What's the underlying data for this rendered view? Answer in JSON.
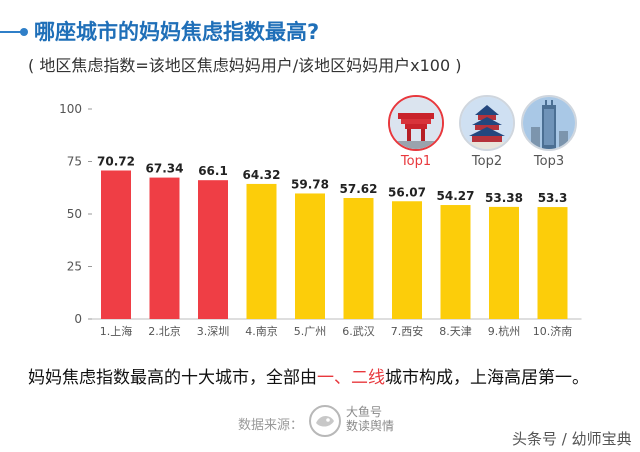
{
  "header": {
    "title": "哪座城市的妈妈焦虑指数最高?",
    "subtitle": "( 地区焦虑指数=该地区焦虑妈妈用户/该地区妈妈用户x100 )"
  },
  "chart_data": {
    "type": "bar",
    "categories": [
      "1.上海",
      "2.北京",
      "3.深圳",
      "4.南京",
      "5.广州",
      "6.武汉",
      "7.西安",
      "8.天津",
      "9.杭州",
      "10.济南"
    ],
    "values": [
      70.72,
      67.34,
      66.1,
      64.32,
      59.78,
      57.62,
      56.07,
      54.27,
      53.38,
      53.3
    ],
    "value_labels": [
      "70.72",
      "67.34",
      "66.1",
      "64.32",
      "59.78",
      "57.62",
      "56.07",
      "54.27",
      "53.38",
      "53.3"
    ],
    "ylim": [
      0,
      100
    ],
    "yticks": [
      0,
      25,
      50,
      75,
      100
    ],
    "grid": false,
    "colors": [
      "#ef3e45",
      "#ef3e45",
      "#ef3e45",
      "#fccd0a",
      "#fccd0a",
      "#fccd0a",
      "#fccd0a",
      "#fccd0a",
      "#fccd0a",
      "#fccd0a"
    ]
  },
  "badges": [
    {
      "label": "Top1",
      "icon": "china-pavilion-icon"
    },
    {
      "label": "Top2",
      "icon": "temple-of-heaven-icon"
    },
    {
      "label": "Top3",
      "icon": "skyscraper-icon"
    }
  ],
  "caption": {
    "part1": "妈妈焦虑指数最高的十大城市，全部由",
    "hl1": "一",
    "sep": "、",
    "hl2": "二线",
    "part2": "城市构成，上海高居第一。"
  },
  "footer": {
    "source_label": "数据来源：",
    "brand_line1": "大鱼号",
    "brand_line2": "数读舆情",
    "watermark": "头条号 / 幼师宝典"
  },
  "colors": {
    "title": "#1f6fb8",
    "bar_red": "#ef3e45",
    "bar_yellow": "#fccd0a",
    "highlight": "#e8383d"
  }
}
